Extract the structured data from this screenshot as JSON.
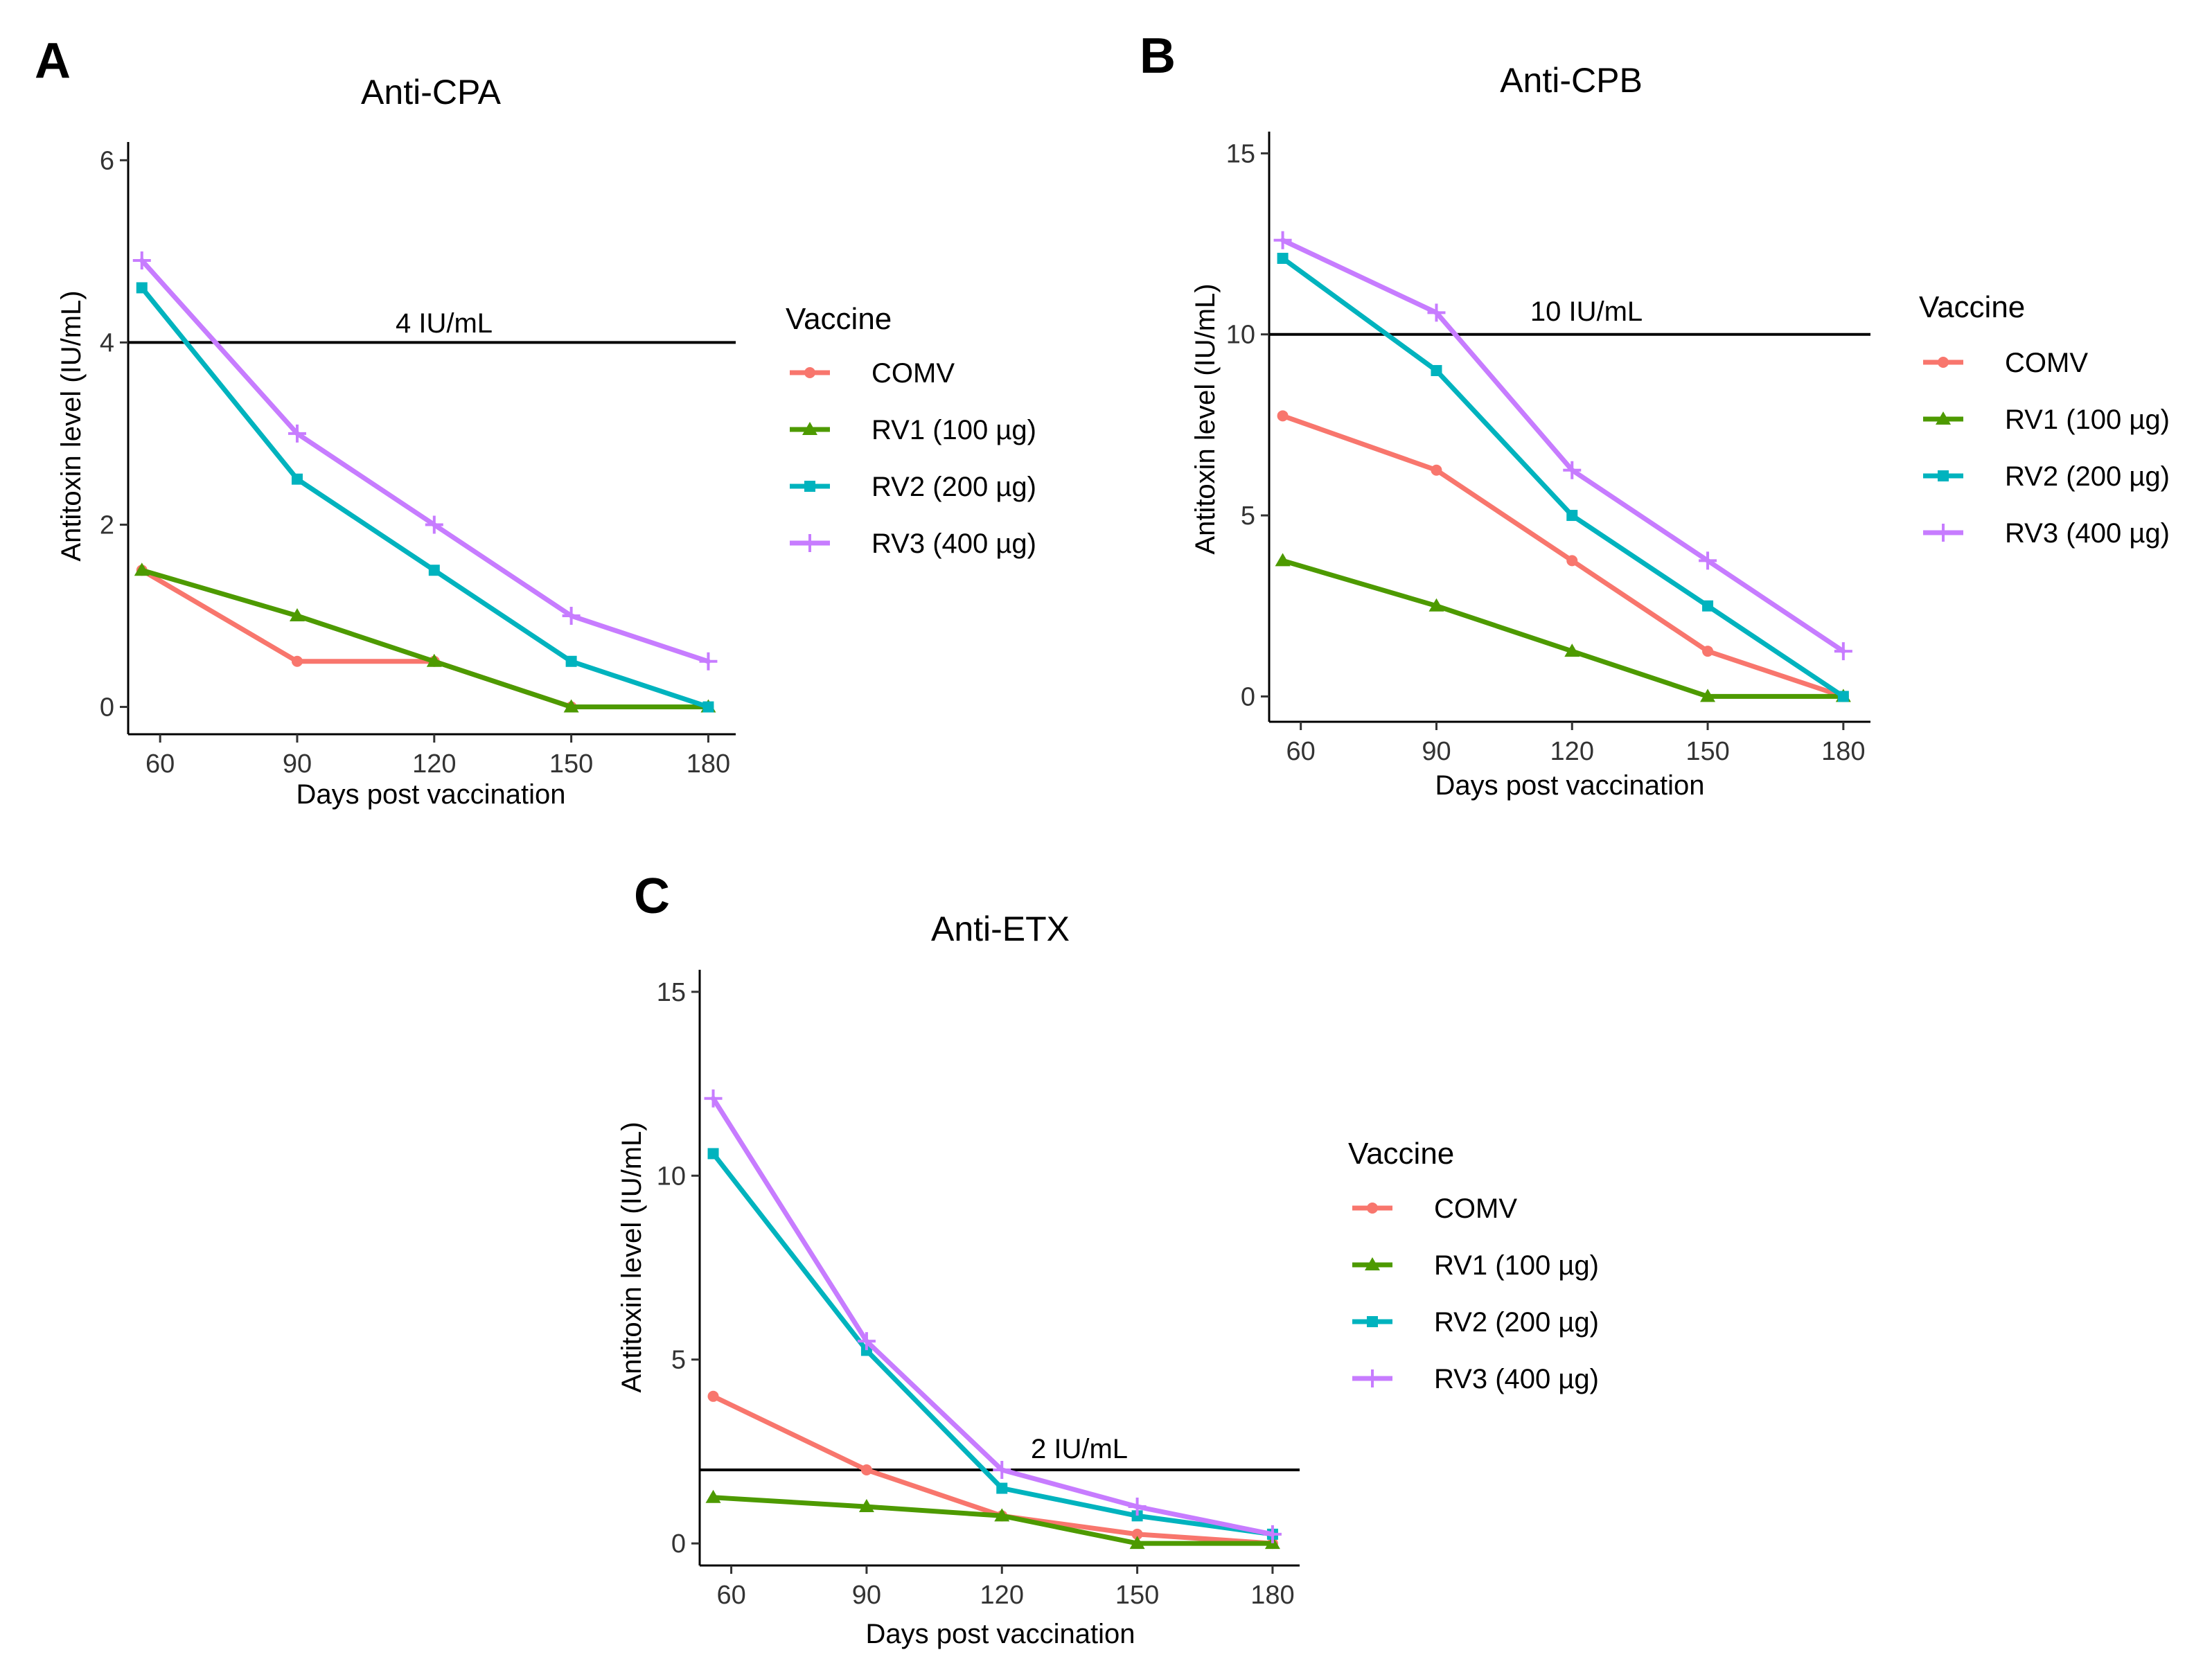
{
  "chart_data": [
    {
      "type": "line",
      "panel": "A",
      "title": "Anti-CPA",
      "xlabel": "Days post vaccination",
      "ylabel": "Antitoxin level (IU/mL)",
      "x": [
        56,
        90,
        120,
        150,
        180
      ],
      "xticks": [
        60,
        90,
        120,
        150,
        180
      ],
      "xlim": [
        53,
        186
      ],
      "ylim": [
        -0.3,
        6.2
      ],
      "yticks": [
        0,
        2,
        4,
        6
      ],
      "reference": {
        "value": 4,
        "label": "4 IU/mL"
      },
      "legend_title": "Vaccine",
      "series": [
        {
          "name": "COMV",
          "color": "#F8766D",
          "marker": "circle",
          "values": [
            1.5,
            0.5,
            0.5,
            0,
            0
          ]
        },
        {
          "name": "RV1 (100 µg)",
          "color": "#4D9A00",
          "marker": "triangle",
          "values": [
            1.5,
            1.0,
            0.5,
            0,
            0
          ]
        },
        {
          "name": "RV2 (200 µg)",
          "color": "#00B3BE",
          "marker": "square",
          "values": [
            4.6,
            2.5,
            1.5,
            0.5,
            0
          ]
        },
        {
          "name": "RV3 (400 µg)",
          "color": "#C77CFF",
          "marker": "plus",
          "values": [
            4.9,
            3.0,
            2.0,
            1.0,
            0.5
          ]
        }
      ]
    },
    {
      "type": "line",
      "panel": "B",
      "title": "Anti-CPB",
      "xlabel": "Days post vaccination",
      "ylabel": "Antitoxin level (IU/mL)",
      "x": [
        56,
        90,
        120,
        150,
        180
      ],
      "xticks": [
        60,
        90,
        120,
        150,
        180
      ],
      "xlim": [
        53,
        186
      ],
      "ylim": [
        -0.7,
        15.6
      ],
      "yticks": [
        0,
        5,
        10,
        15
      ],
      "reference": {
        "value": 10,
        "label": "10 IU/mL"
      },
      "legend_title": "Vaccine",
      "series": [
        {
          "name": "COMV",
          "color": "#F8766D",
          "marker": "circle",
          "values": [
            7.75,
            6.25,
            3.75,
            1.25,
            0
          ]
        },
        {
          "name": "RV1 (100 µg)",
          "color": "#4D9A00",
          "marker": "triangle",
          "values": [
            3.75,
            2.5,
            1.25,
            0,
            0
          ]
        },
        {
          "name": "RV2 (200 µg)",
          "color": "#00B3BE",
          "marker": "square",
          "values": [
            12.1,
            9.0,
            5.0,
            2.5,
            0
          ]
        },
        {
          "name": "RV3 (400 µg)",
          "color": "#C77CFF",
          "marker": "plus",
          "values": [
            12.6,
            10.6,
            6.25,
            3.75,
            1.25
          ]
        }
      ]
    },
    {
      "type": "line",
      "panel": "C",
      "title": "Anti-ETX",
      "xlabel": "Days post vaccination",
      "ylabel": "Antitoxin level (IU/mL)",
      "x": [
        56,
        90,
        120,
        150,
        180
      ],
      "xticks": [
        60,
        90,
        120,
        150,
        180
      ],
      "xlim": [
        53,
        186
      ],
      "ylim": [
        -0.6,
        15.6
      ],
      "yticks": [
        0,
        5,
        10,
        15
      ],
      "reference": {
        "value": 2,
        "label": "2 IU/mL"
      },
      "legend_title": "Vaccine",
      "series": [
        {
          "name": "COMV",
          "color": "#F8766D",
          "marker": "circle",
          "values": [
            4.0,
            2.0,
            0.75,
            0.25,
            0
          ]
        },
        {
          "name": "RV1 (100 µg)",
          "color": "#4D9A00",
          "marker": "triangle",
          "values": [
            1.25,
            1.0,
            0.75,
            0,
            0
          ]
        },
        {
          "name": "RV2 (200 µg)",
          "color": "#00B3BE",
          "marker": "square",
          "values": [
            10.6,
            5.25,
            1.5,
            0.75,
            0.25
          ]
        },
        {
          "name": "RV3 (400 µg)",
          "color": "#C77CFF",
          "marker": "plus",
          "values": [
            12.1,
            5.5,
            2.0,
            1.0,
            0.25
          ]
        }
      ]
    }
  ]
}
